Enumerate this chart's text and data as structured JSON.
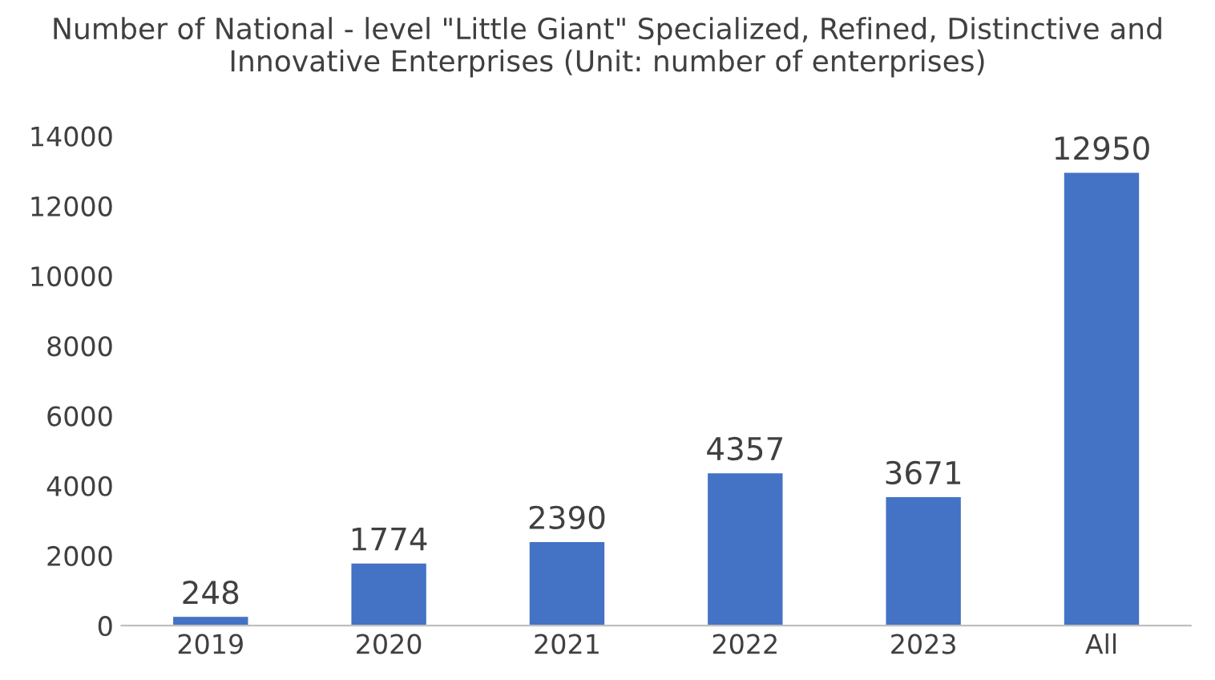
{
  "chart_data": {
    "type": "bar",
    "title": "Number of National - level \"Little Giant\" Specialized, Refined, Distinctive and Innovative Enterprises (Unit: number of enterprises)",
    "categories": [
      "2019",
      "2020",
      "2021",
      "2022",
      "2023",
      "All"
    ],
    "values": [
      248,
      1774,
      2390,
      4357,
      3671,
      12950
    ],
    "color": "#4472c4",
    "ylim": [
      0,
      14000
    ],
    "yticks": [
      0,
      2000,
      4000,
      6000,
      8000,
      10000,
      12000,
      14000
    ],
    "grid": false,
    "data_labels": true
  }
}
